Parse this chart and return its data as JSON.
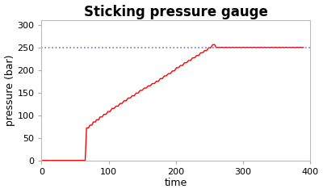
{
  "title": "Sticking pressure gauge",
  "xlabel": "time",
  "ylabel": "pressure (bar)",
  "xlim": [
    0,
    400
  ],
  "ylim": [
    0,
    310
  ],
  "yticks": [
    0,
    50,
    100,
    150,
    200,
    250,
    300
  ],
  "xticks": [
    0,
    100,
    200,
    300,
    400
  ],
  "line_color": "#ff0000",
  "dotted_line_color": "#7777bb",
  "dotted_line_y": 250,
  "background_color": "#ffffff",
  "title_fontsize": 12,
  "axis_label_fontsize": 9,
  "tick_fontsize": 8,
  "step_points": [
    [
      0,
      0
    ],
    [
      60,
      0
    ],
    [
      62,
      0
    ],
    [
      65,
      0
    ],
    [
      67,
      72
    ],
    [
      70,
      72
    ],
    [
      72,
      78
    ],
    [
      75,
      78
    ],
    [
      77,
      85
    ],
    [
      80,
      85
    ],
    [
      82,
      90
    ],
    [
      85,
      90
    ],
    [
      87,
      96
    ],
    [
      90,
      96
    ],
    [
      93,
      102
    ],
    [
      96,
      102
    ],
    [
      99,
      108
    ],
    [
      102,
      108
    ],
    [
      105,
      115
    ],
    [
      108,
      115
    ],
    [
      111,
      120
    ],
    [
      114,
      120
    ],
    [
      117,
      126
    ],
    [
      120,
      126
    ],
    [
      123,
      132
    ],
    [
      126,
      132
    ],
    [
      129,
      138
    ],
    [
      132,
      138
    ],
    [
      135,
      143
    ],
    [
      138,
      143
    ],
    [
      141,
      149
    ],
    [
      144,
      149
    ],
    [
      147,
      155
    ],
    [
      150,
      155
    ],
    [
      153,
      160
    ],
    [
      156,
      160
    ],
    [
      159,
      165
    ],
    [
      162,
      165
    ],
    [
      165,
      170
    ],
    [
      168,
      170
    ],
    [
      171,
      175
    ],
    [
      174,
      175
    ],
    [
      177,
      181
    ],
    [
      180,
      181
    ],
    [
      183,
      187
    ],
    [
      186,
      187
    ],
    [
      189,
      192
    ],
    [
      192,
      192
    ],
    [
      195,
      198
    ],
    [
      198,
      198
    ],
    [
      201,
      205
    ],
    [
      204,
      205
    ],
    [
      207,
      210
    ],
    [
      210,
      210
    ],
    [
      213,
      216
    ],
    [
      216,
      216
    ],
    [
      219,
      221
    ],
    [
      222,
      221
    ],
    [
      225,
      227
    ],
    [
      228,
      227
    ],
    [
      231,
      232
    ],
    [
      234,
      232
    ],
    [
      237,
      238
    ],
    [
      240,
      238
    ],
    [
      243,
      243
    ],
    [
      246,
      243
    ],
    [
      249,
      249
    ],
    [
      252,
      249
    ],
    [
      255,
      256
    ],
    [
      258,
      256
    ],
    [
      260,
      250
    ],
    [
      390,
      250
    ]
  ]
}
